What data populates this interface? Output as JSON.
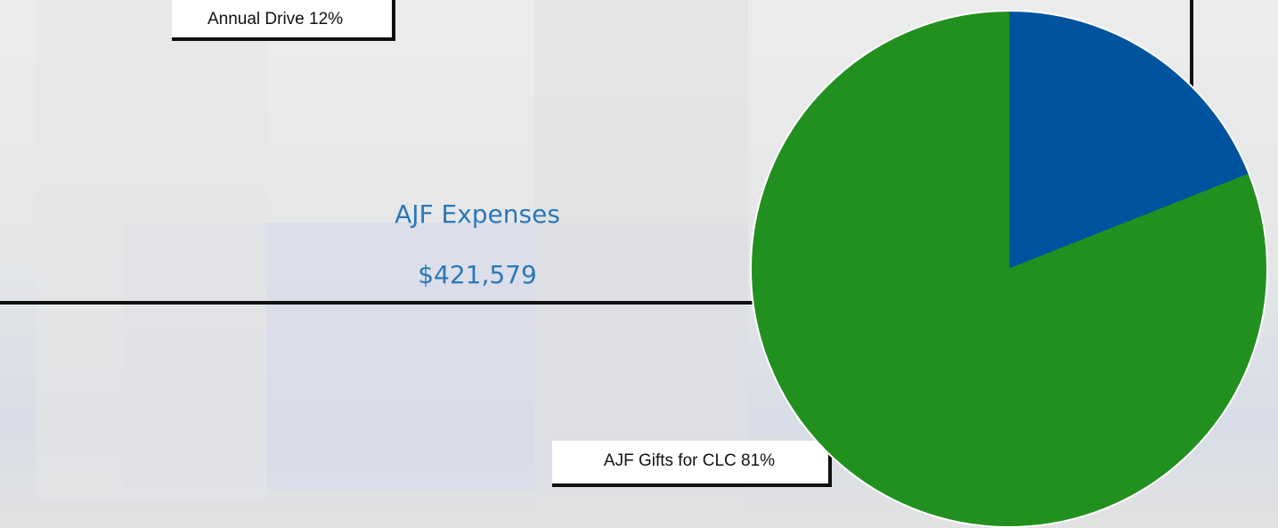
{
  "chart_data": {
    "type": "pie",
    "title": "AJF Expenses",
    "subtitle": "$421,579",
    "categories": [
      "Annual Drive",
      null,
      "AJF Gifts for CLC"
    ],
    "values": [
      12,
      7,
      81
    ],
    "value_labels": [
      "12%",
      null,
      "81%"
    ],
    "colors": [
      "#00539f",
      "#00539f",
      "#22901f"
    ]
  }
}
